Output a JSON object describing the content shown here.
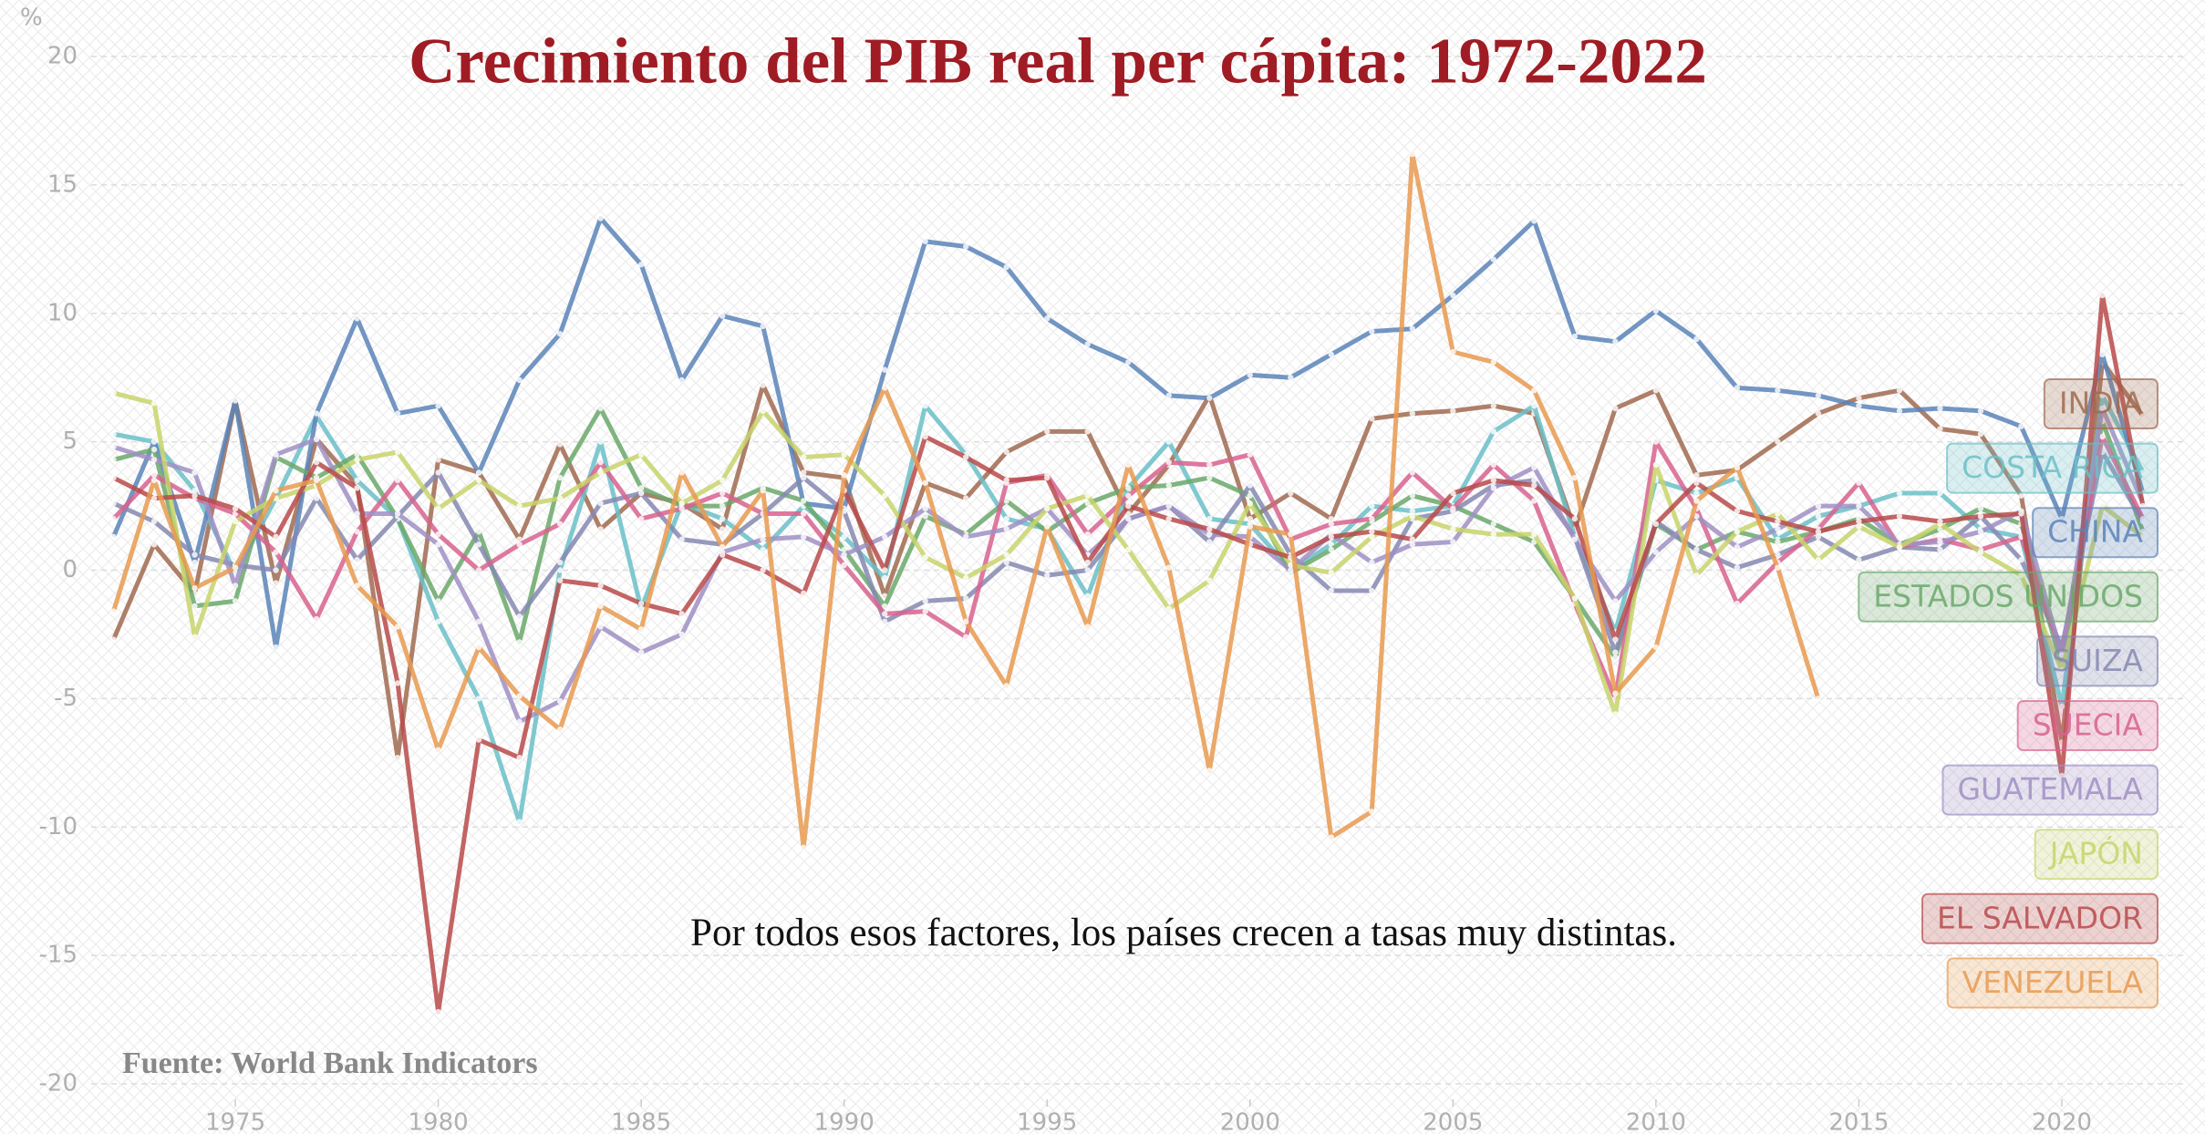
{
  "chart_data": {
    "type": "line",
    "title": "Crecimiento del PIB real per cápita: 1972-2022",
    "y_axis_label": "%",
    "annotation": "Por todos esos factores, los países crecen a tasas muy distintas.",
    "source": "Fuente: World Bank Indicators",
    "x": [
      1972,
      1973,
      1974,
      1975,
      1976,
      1977,
      1978,
      1979,
      1980,
      1981,
      1982,
      1983,
      1984,
      1985,
      1986,
      1987,
      1988,
      1989,
      1990,
      1991,
      1992,
      1993,
      1994,
      1995,
      1996,
      1997,
      1998,
      1999,
      2000,
      2001,
      2002,
      2003,
      2004,
      2005,
      2006,
      2007,
      2008,
      2009,
      2010,
      2011,
      2012,
      2013,
      2014,
      2015,
      2016,
      2017,
      2018,
      2019,
      2020,
      2021,
      2022
    ],
    "xlim": [
      1970,
      2023
    ],
    "xticks": [
      1975,
      1980,
      1985,
      1990,
      1995,
      2000,
      2005,
      2010,
      2015,
      2020
    ],
    "ylim": [
      -20,
      20
    ],
    "yticks": [
      -20,
      -15,
      -10,
      -5,
      0,
      5,
      10,
      15,
      20
    ],
    "grid": true,
    "legend": "right",
    "series": [
      {
        "name": "INDIA",
        "color": "#a06a50",
        "values": [
          -2.7,
          1.0,
          -0.9,
          6.6,
          -0.5,
          5.1,
          3.3,
          -7.3,
          4.3,
          3.8,
          1.2,
          4.9,
          1.6,
          3.0,
          2.6,
          1.6,
          7.2,
          3.8,
          3.6,
          -1.0,
          3.4,
          2.8,
          4.6,
          5.4,
          5.4,
          2.2,
          4.1,
          6.8,
          2.0,
          3.0,
          2.0,
          5.9,
          6.1,
          6.2,
          6.4,
          6.1,
          1.6,
          6.3,
          7.0,
          3.7,
          3.9,
          5.0,
          6.1,
          6.7,
          7.0,
          5.5,
          5.3,
          2.9,
          -6.7,
          8.1,
          6.0
        ]
      },
      {
        "name": "COSTA RICA",
        "color": "#6bbfc8",
        "values": [
          5.3,
          5.0,
          3.1,
          -0.1,
          2.8,
          6.0,
          3.5,
          2.0,
          -2.0,
          -5.0,
          -9.8,
          0.0,
          5.0,
          -1.5,
          2.6,
          2.0,
          0.8,
          2.5,
          1.3,
          -0.3,
          6.4,
          4.5,
          2.0,
          1.6,
          -1.0,
          3.2,
          5.0,
          2.0,
          1.8,
          0.0,
          1.0,
          2.5,
          2.3,
          2.5,
          5.4,
          6.4,
          1.3,
          -2.4,
          3.5,
          3.0,
          3.6,
          1.2,
          2.1,
          2.5,
          3.0,
          3.0,
          1.6,
          1.3,
          -5.3,
          6.8,
          3.8
        ]
      },
      {
        "name": "CHINA",
        "color": "#5b84b8",
        "values": [
          1.3,
          5.0,
          0.3,
          6.6,
          -3.0,
          6.1,
          9.8,
          6.1,
          6.4,
          3.8,
          7.4,
          9.2,
          13.7,
          11.9,
          7.4,
          9.9,
          9.5,
          2.6,
          2.4,
          7.8,
          12.8,
          12.6,
          11.8,
          9.8,
          8.8,
          8.1,
          6.8,
          6.7,
          7.6,
          7.5,
          8.4,
          9.3,
          9.4,
          10.7,
          12.1,
          13.6,
          9.1,
          8.9,
          10.1,
          9.0,
          7.1,
          7.0,
          6.8,
          6.4,
          6.2,
          6.3,
          6.2,
          5.6,
          2.0,
          8.4,
          3.0
        ]
      },
      {
        "name": "ESTADOS UNIDOS",
        "color": "#6aa86a",
        "values": [
          4.3,
          4.7,
          -1.4,
          -1.2,
          4.4,
          3.6,
          4.5,
          2.0,
          -1.2,
          1.5,
          -2.8,
          3.6,
          6.3,
          3.2,
          2.5,
          2.5,
          3.2,
          2.7,
          0.8,
          -1.4,
          2.1,
          1.4,
          2.7,
          1.5,
          2.6,
          3.2,
          3.3,
          3.6,
          2.9,
          -0.1,
          0.8,
          1.9,
          2.9,
          2.5,
          1.8,
          1.1,
          -1.1,
          -3.4,
          1.8,
          0.8,
          1.5,
          1.1,
          1.5,
          2.0,
          1.0,
          1.6,
          2.4,
          1.8,
          -3.7,
          5.8,
          1.5
        ]
      },
      {
        "name": "SUIZA",
        "color": "#8588b0",
        "values": [
          2.6,
          1.9,
          0.6,
          0.2,
          0.0,
          2.8,
          0.4,
          2.1,
          3.8,
          1.0,
          -1.8,
          0.3,
          2.6,
          3.0,
          1.2,
          1.0,
          2.2,
          3.6,
          2.3,
          -2.0,
          -1.2,
          -1.1,
          0.3,
          -0.2,
          0.0,
          2.0,
          2.5,
          1.1,
          3.3,
          0.6,
          -0.8,
          -0.8,
          2.0,
          2.3,
          3.3,
          3.5,
          1.3,
          -3.2,
          1.9,
          0.8,
          0.1,
          0.6,
          1.3,
          0.4,
          0.9,
          0.8,
          2.1,
          0.4,
          -3.0,
          4.6,
          1.9
        ]
      },
      {
        "name": "SUECIA",
        "color": "#d8628e",
        "values": [
          2.0,
          3.7,
          2.8,
          2.2,
          0.7,
          -1.9,
          1.5,
          3.5,
          1.4,
          0.0,
          1.0,
          1.8,
          4.2,
          2.0,
          2.4,
          3.0,
          2.2,
          2.2,
          0.2,
          -1.7,
          -1.6,
          -2.6,
          3.4,
          3.7,
          1.4,
          2.9,
          4.2,
          4.1,
          4.5,
          1.2,
          1.8,
          2.0,
          3.8,
          2.4,
          4.1,
          2.7,
          -1.3,
          -5.0,
          5.0,
          2.4,
          -1.3,
          0.3,
          1.6,
          3.4,
          0.9,
          1.2,
          0.8,
          1.3,
          -3.2,
          5.2,
          2.0
        ]
      },
      {
        "name": "GUATEMALA",
        "color": "#a08fc4",
        "values": [
          4.8,
          4.3,
          3.8,
          -0.6,
          4.5,
          5.1,
          2.2,
          2.2,
          1.0,
          -2.0,
          -5.9,
          -5.1,
          -2.2,
          -3.2,
          -2.5,
          0.7,
          1.2,
          1.3,
          0.6,
          1.3,
          2.4,
          1.3,
          1.6,
          2.4,
          0.6,
          2.0,
          2.5,
          1.4,
          1.3,
          0.0,
          1.4,
          0.3,
          1.0,
          1.1,
          3.2,
          4.0,
          1.2,
          -1.2,
          0.7,
          2.1,
          0.9,
          1.6,
          2.5,
          2.5,
          1.0,
          1.1,
          1.5,
          2.3,
          -3.3,
          6.3,
          2.6
        ]
      },
      {
        "name": "JAPÓN",
        "color": "#c8d46a",
        "values": [
          6.9,
          6.5,
          -2.6,
          1.9,
          2.8,
          3.3,
          4.3,
          4.6,
          2.4,
          3.5,
          2.5,
          2.8,
          3.8,
          4.5,
          2.6,
          3.5,
          6.2,
          4.4,
          4.5,
          2.9,
          0.5,
          -0.3,
          0.6,
          2.4,
          2.9,
          0.8,
          -1.5,
          -0.4,
          2.6,
          0.2,
          -0.1,
          1.3,
          2.1,
          1.6,
          1.4,
          1.4,
          -1.1,
          -5.6,
          4.1,
          -0.2,
          1.5,
          2.2,
          0.4,
          1.7,
          0.9,
          1.8,
          0.7,
          -0.2,
          -3.9,
          2.5,
          1.3
        ]
      },
      {
        "name": "EL SALVADOR",
        "color": "#b94a4a",
        "values": [
          3.6,
          2.8,
          2.9,
          2.4,
          1.3,
          4.2,
          3.2,
          -4.4,
          -17.2,
          -6.6,
          -7.3,
          -0.4,
          -0.6,
          -1.3,
          -1.7,
          0.6,
          0.0,
          -0.9,
          3.1,
          0.0,
          5.2,
          4.4,
          3.5,
          3.6,
          0.3,
          2.5,
          2.0,
          1.6,
          1.0,
          0.5,
          1.3,
          1.5,
          1.2,
          3.0,
          3.5,
          3.3,
          2.0,
          -2.7,
          1.8,
          3.4,
          2.3,
          1.9,
          1.5,
          1.9,
          2.1,
          1.9,
          2.1,
          2.2,
          -8.0,
          10.7,
          2.5
        ]
      },
      {
        "name": "VENEZUELA",
        "color": "#e89a50",
        "values": [
          -1.6,
          3.5,
          -0.7,
          0.1,
          3.1,
          3.5,
          -0.6,
          -2.2,
          -7.0,
          -3.0,
          -4.9,
          -6.2,
          -1.4,
          -2.3,
          3.8,
          0.9,
          3.1,
          -10.8,
          3.7,
          7.1,
          3.4,
          -2.0,
          -4.5,
          1.7,
          -2.2,
          4.1,
          0.1,
          -7.8,
          1.7,
          1.4,
          -10.4,
          -9.4,
          16.2,
          8.5,
          8.1,
          7.0,
          3.6,
          -4.8,
          -3.0,
          2.7,
          4.0,
          0.1,
          -5.0,
          null,
          null,
          null,
          null,
          null,
          null,
          null,
          null
        ]
      }
    ]
  }
}
